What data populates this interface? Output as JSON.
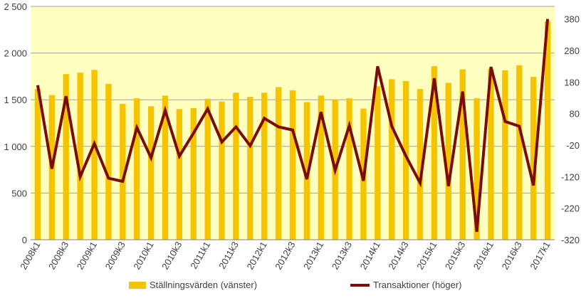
{
  "chart_data": {
    "type": "bar",
    "combo": "bar+line",
    "categories": [
      "2008k1",
      "2008k2",
      "2008k3",
      "2008k4",
      "2009k1",
      "2009k2",
      "2009k3",
      "2009k4",
      "2010k1",
      "2010k2",
      "2010k3",
      "2010k4",
      "2011k1",
      "2011k2",
      "2011k3",
      "2011k4",
      "2012k1",
      "2012k2",
      "2012k3",
      "2012k4",
      "2013k1",
      "2013k2",
      "2013k3",
      "2013k4",
      "2014k1",
      "2014k2",
      "2014k3",
      "2014k4",
      "2015k1",
      "2015k2",
      "2015k3",
      "2015k4",
      "2016k1",
      "2016k2",
      "2016k3",
      "2016k4",
      "2017k1"
    ],
    "x_tick_labels": [
      "2008k1",
      "2008k3",
      "2009k1",
      "2009k3",
      "2010k1",
      "2010k3",
      "2011k1",
      "2011k3",
      "2012k1",
      "2012k3",
      "2013k1",
      "2013k3",
      "2014k1",
      "2014k3",
      "2015k1",
      "2015k3",
      "2016k1",
      "2016k3",
      "2017k1"
    ],
    "series": [
      {
        "name": "Ställningsvärden (vänster)",
        "type": "bar",
        "axis": "left",
        "color": "#F5C400",
        "values": [
          1615,
          1550,
          1775,
          1790,
          1820,
          1670,
          1455,
          1515,
          1430,
          1545,
          1400,
          1410,
          1510,
          1480,
          1575,
          1530,
          1575,
          1635,
          1600,
          1475,
          1545,
          1500,
          1515,
          1405,
          1645,
          1720,
          1700,
          1615,
          1860,
          1680,
          1825,
          1515,
          1830,
          1815,
          1870,
          1745,
          2340
        ]
      },
      {
        "name": "Transaktioner (höger)",
        "type": "line",
        "axis": "right",
        "color": "#7B0C0C",
        "values": [
          170,
          -95,
          135,
          -120,
          -15,
          -125,
          -135,
          36,
          -60,
          90,
          -55,
          18,
          95,
          -10,
          38,
          -22,
          65,
          38,
          28,
          -128,
          85,
          -100,
          42,
          -133,
          230,
          40,
          -55,
          -140,
          192,
          -150,
          150,
          -295,
          228,
          55,
          40,
          -148,
          380
        ]
      }
    ],
    "left_axis": {
      "ylim": [
        0,
        2500
      ],
      "ticks": [
        "0",
        "500",
        "1 000",
        "1 500",
        "2 000",
        "2 500"
      ]
    },
    "right_axis": {
      "ylim": [
        -320,
        420
      ],
      "ticks": [
        "380",
        "280",
        "180",
        "80",
        "-20",
        "-120",
        "-220",
        "-320"
      ]
    },
    "legend": {
      "position": "bottom",
      "entries": [
        "Ställningsvärden (vänster)",
        "Transaktioner (höger)"
      ]
    },
    "grid": true,
    "plot_background": "#FFFFC0",
    "title": "",
    "xlabel": "",
    "ylabel": ""
  }
}
